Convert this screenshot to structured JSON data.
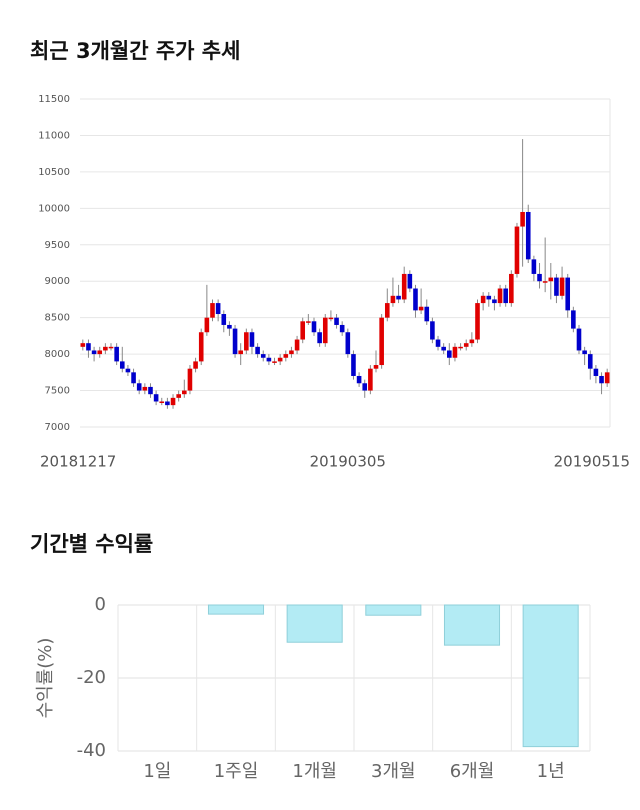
{
  "chart_data": [
    {
      "type": "candlestick",
      "title": "최근 3개월간 주가 추세",
      "categories": [
        "20181217",
        null,
        null,
        null,
        null,
        null,
        null,
        null,
        null,
        null,
        null,
        null,
        null,
        null,
        null,
        null,
        null,
        null,
        null,
        null,
        null,
        null,
        null,
        null,
        null,
        null,
        null,
        null,
        null,
        null,
        null,
        null,
        null,
        null,
        null,
        null,
        null,
        null,
        null,
        null,
        null,
        null,
        null,
        null,
        null,
        null,
        null,
        "20190305",
        null,
        null,
        null,
        null,
        null,
        null,
        null,
        null,
        null,
        null,
        null,
        null,
        null,
        null,
        null,
        null,
        null,
        null,
        null,
        null,
        null,
        null,
        null,
        null,
        null,
        null,
        null,
        null,
        null,
        null,
        null,
        null,
        null,
        null,
        null,
        null,
        null,
        null,
        null,
        null,
        null,
        null,
        null,
        null,
        null,
        "20190515"
      ],
      "open": [
        8100,
        8150,
        8050,
        8000,
        8050,
        8100,
        8100,
        7900,
        7800,
        7750,
        7600,
        7500,
        7550,
        7450,
        7350,
        7350,
        7300,
        7400,
        7450,
        7500,
        7800,
        7900,
        8300,
        8500,
        8700,
        8550,
        8400,
        8350,
        8000,
        8050,
        8300,
        8100,
        8000,
        7950,
        7900,
        7900,
        7950,
        8000,
        8050,
        8200,
        8450,
        8450,
        8300,
        8150,
        8500,
        8500,
        8400,
        8300,
        8000,
        7700,
        7600,
        7500,
        7800,
        7850,
        8500,
        8700,
        8800,
        8750,
        9100,
        8900,
        8600,
        8650,
        8450,
        8200,
        8100,
        8050,
        7950,
        8100,
        8100,
        8150,
        8200,
        8700,
        8800,
        8750,
        8700,
        8900,
        8700,
        9100,
        9750,
        9950,
        9300,
        9100,
        9000,
        9000,
        9050,
        8800,
        9050,
        8600,
        8350,
        8050,
        8000,
        7800,
        7700,
        7600
      ],
      "high": [
        8200,
        8200,
        8100,
        8100,
        8150,
        8150,
        8150,
        8100,
        7850,
        7800,
        7650,
        7600,
        7600,
        7500,
        7400,
        7400,
        7450,
        7500,
        7650,
        7850,
        7950,
        8350,
        8950,
        8750,
        8750,
        8600,
        8450,
        8400,
        8150,
        8350,
        8350,
        8150,
        8050,
        8000,
        7950,
        8000,
        8050,
        8100,
        8250,
        8500,
        8550,
        8500,
        8350,
        8550,
        8600,
        8550,
        8450,
        8350,
        8050,
        7750,
        7650,
        7850,
        8050,
        8550,
        8900,
        9050,
        8950,
        9200,
        9150,
        8950,
        8900,
        8750,
        8500,
        8250,
        8150,
        8150,
        8150,
        8150,
        8200,
        8300,
        8750,
        8850,
        8850,
        8800,
        8950,
        8950,
        9150,
        9800,
        10950,
        10050,
        9350,
        9250,
        9600,
        9250,
        9100,
        9200,
        9100,
        8650,
        8400,
        8100,
        8050,
        7850,
        7750,
        7800
      ],
      "low": [
        8050,
        7950,
        7900,
        7950,
        8000,
        8050,
        7850,
        7750,
        7700,
        7550,
        7450,
        7450,
        7400,
        7300,
        7300,
        7250,
        7250,
        7350,
        7400,
        7450,
        7750,
        7850,
        8250,
        8450,
        8450,
        8300,
        8250,
        7950,
        7850,
        8000,
        8000,
        7950,
        7900,
        7850,
        7850,
        7850,
        7900,
        7950,
        8000,
        8150,
        8400,
        8250,
        8100,
        8100,
        8450,
        8350,
        8250,
        7950,
        7650,
        7550,
        7400,
        7450,
        7750,
        7800,
        8450,
        8650,
        8700,
        8700,
        8850,
        8500,
        8550,
        8400,
        8150,
        8050,
        8000,
        7850,
        7900,
        8050,
        8050,
        8100,
        8150,
        8600,
        8650,
        8600,
        8650,
        8650,
        8650,
        9050,
        9200,
        9250,
        9000,
        8900,
        8850,
        8750,
        8700,
        8750,
        8500,
        8300,
        8000,
        7850,
        7650,
        7600,
        7450,
        7550
      ],
      "close": [
        8150,
        8050,
        8000,
        8050,
        8100,
        8100,
        7900,
        7800,
        7750,
        7600,
        7500,
        7550,
        7450,
        7350,
        7350,
        7300,
        7400,
        7450,
        7500,
        7800,
        7900,
        8300,
        8500,
        8700,
        8550,
        8400,
        8350,
        8000,
        8050,
        8300,
        8100,
        8000,
        7950,
        7900,
        7900,
        7950,
        8000,
        8050,
        8200,
        8450,
        8450,
        8300,
        8150,
        8500,
        8500,
        8400,
        8300,
        8000,
        7700,
        7600,
        7500,
        7800,
        7850,
        8500,
        8700,
        8800,
        8750,
        9100,
        8900,
        8600,
        8650,
        8450,
        8200,
        8100,
        8050,
        7950,
        8100,
        8100,
        8150,
        8200,
        8700,
        8800,
        8750,
        8700,
        8900,
        8700,
        9100,
        9750,
        9950,
        9300,
        9100,
        9000,
        9000,
        9050,
        8800,
        9050,
        8600,
        8350,
        8050,
        8000,
        7800,
        7700,
        7600,
        7750
      ],
      "up_color": "#e00000",
      "down_color": "#0000cc",
      "ylim": [
        7000,
        11500
      ],
      "yticks": [
        7000,
        7500,
        8000,
        8500,
        9000,
        9500,
        10000,
        10500,
        11000,
        11500
      ],
      "grid": true
    },
    {
      "type": "bar",
      "title": "기간별 수익률",
      "ylabel": "수익률(%)",
      "categories": [
        "1일",
        "1주일",
        "1개월",
        "3개월",
        "6개월",
        "1년"
      ],
      "values": [
        0,
        -2.5,
        -10.2,
        -2.8,
        -11,
        -38.8
      ],
      "color": "#b3ebf4",
      "ylim": [
        -40,
        0
      ],
      "yticks": [
        0,
        -20,
        -40
      ],
      "grid": true
    }
  ]
}
